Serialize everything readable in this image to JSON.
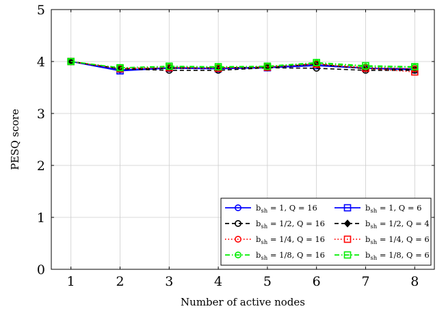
{
  "chart_data": {
    "type": "line",
    "title": "",
    "xlabel": "Number of active nodes",
    "ylabel": "PESQ score",
    "x": [
      1,
      2,
      3,
      4,
      5,
      6,
      7,
      8
    ],
    "xlim": [
      0.6,
      8.4
    ],
    "ylim": [
      0,
      5
    ],
    "xticks": [
      "1",
      "2",
      "3",
      "4",
      "5",
      "6",
      "7",
      "8"
    ],
    "yticks": [
      "0",
      "1",
      "2",
      "3",
      "4",
      "5"
    ],
    "grid": true,
    "legend_position": "bottom-right",
    "series": [
      {
        "name_main": "b",
        "name_sub": "sh",
        "name_rest": " = 1, Q = 16",
        "color": "#0000ff",
        "dash": "solid",
        "marker": "circle",
        "values": [
          4.0,
          3.84,
          3.88,
          3.87,
          3.89,
          3.94,
          3.87,
          3.86
        ]
      },
      {
        "name_main": "b",
        "name_sub": "sh",
        "name_rest": " = 1, Q = 6",
        "color": "#0000ff",
        "dash": "solid",
        "marker": "square",
        "values": [
          4.0,
          3.82,
          3.87,
          3.86,
          3.88,
          3.92,
          3.87,
          3.84
        ]
      },
      {
        "name_main": "b",
        "name_sub": "sh",
        "name_rest": " = 1/2, Q = 16",
        "color": "#000000",
        "dash": "dashed",
        "marker": "circle",
        "values": [
          4.0,
          3.86,
          3.83,
          3.83,
          3.88,
          3.87,
          3.83,
          3.83
        ]
      },
      {
        "name_main": "b",
        "name_sub": "sh",
        "name_rest": " = 1/2, Q = 4",
        "color": "#000000",
        "dash": "dashed",
        "marker": "diamond",
        "values": [
          4.0,
          3.86,
          3.87,
          3.88,
          3.89,
          3.95,
          3.86,
          3.85
        ]
      },
      {
        "name_main": "b",
        "name_sub": "sh",
        "name_rest": " = 1/4, Q = 16",
        "color": "#ff0000",
        "dash": "dotted",
        "marker": "circle",
        "values": [
          4.0,
          3.87,
          3.89,
          3.88,
          3.9,
          3.96,
          3.89,
          3.86
        ]
      },
      {
        "name_main": "b",
        "name_sub": "sh",
        "name_rest": " = 1/4, Q = 6",
        "color": "#ff0000",
        "dash": "dotted",
        "marker": "square",
        "values": [
          4.0,
          3.86,
          3.88,
          3.87,
          3.89,
          3.95,
          3.87,
          3.8
        ]
      },
      {
        "name_main": "b",
        "name_sub": "sh",
        "name_rest": " = 1/8, Q = 16",
        "color": "#00ee00",
        "dash": "dashdot",
        "marker": "circle",
        "values": [
          4.0,
          3.88,
          3.9,
          3.89,
          3.9,
          3.97,
          3.9,
          3.89
        ]
      },
      {
        "name_main": "b",
        "name_sub": "sh",
        "name_rest": " = 1/8, Q = 6",
        "color": "#00ee00",
        "dash": "dashdot",
        "marker": "square",
        "values": [
          4.0,
          3.88,
          3.91,
          3.9,
          3.91,
          3.98,
          3.92,
          3.9
        ]
      }
    ]
  }
}
